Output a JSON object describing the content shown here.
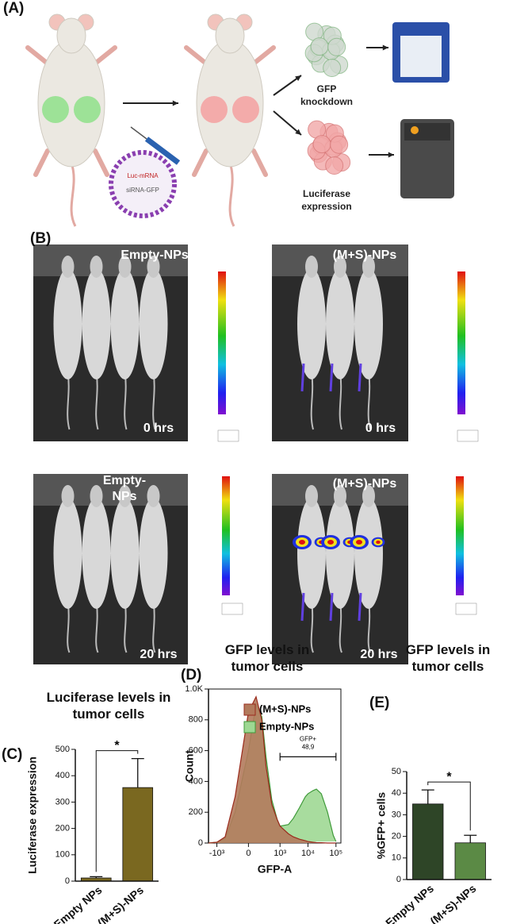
{
  "figure": {
    "panel_labels": [
      "(A)",
      "(B)",
      "(C)",
      "(D)",
      "(E)"
    ],
    "panel_a": {
      "particle_labels": [
        "Luc-mRNA",
        "siRNA-GFP"
      ],
      "outcomes": [
        "GFP knockdown",
        "Luciferase expression"
      ]
    },
    "panel_b": {
      "images": [
        {
          "group": "Empty-NPs",
          "time": "0 hrs"
        },
        {
          "group": "(M+S)-NPs",
          "time": "0 hrs"
        },
        {
          "group": "Empty-NPs",
          "time": "20 hrs"
        },
        {
          "group": "(M+S)-NPs",
          "time": "20 hrs"
        }
      ]
    }
  },
  "chart_data": [
    {
      "type": "bar",
      "title": "Luciferase levels in tumor cells",
      "ylabel": "Luciferase expression",
      "categories": [
        "Empty NPs",
        "(M+S)-NPs"
      ],
      "values": [
        12,
        355
      ],
      "errors": [
        5,
        110
      ],
      "colors": [
        "#7a6820",
        "#7a6820"
      ],
      "ylim": [
        0,
        500
      ],
      "yticks": [
        0,
        100,
        200,
        300,
        400,
        500
      ],
      "significance": "*"
    },
    {
      "type": "line",
      "title": "GFP levels in tumor cells",
      "xlabel": "GFP-A",
      "ylabel": "Count",
      "xscale": "biexponential",
      "x": [
        -2000,
        -1000,
        -500,
        -200,
        0,
        100,
        200,
        300,
        500,
        800,
        1000,
        2000,
        3000,
        5000,
        8000,
        10000,
        15000,
        20000,
        30000,
        50000,
        80000,
        100000
      ],
      "series": [
        {
          "name": "(M+S)-NPs",
          "color": "#b27a5c",
          "line_color": "#9a2a1c",
          "values": [
            0,
            5,
            40,
            300,
            850,
            950,
            800,
            500,
            250,
            150,
            110,
            60,
            40,
            25,
            15,
            10,
            5,
            3,
            2,
            0,
            0,
            0
          ]
        },
        {
          "name": "Empty-NPs",
          "color": "#9ed893",
          "line_color": "#3f9a3a",
          "values": [
            0,
            5,
            30,
            200,
            600,
            900,
            820,
            560,
            280,
            150,
            110,
            120,
            160,
            230,
            300,
            320,
            340,
            350,
            320,
            200,
            50,
            10
          ]
        }
      ],
      "xlim": [
        -2000,
        150000
      ],
      "xticks": [
        {
          "value": -1000,
          "label": "-10³"
        },
        0,
        {
          "value": 1000,
          "label": "10³"
        },
        {
          "value": 10000,
          "label": "10⁴"
        },
        {
          "value": 100000,
          "label": "10⁵"
        }
      ],
      "ylim": [
        0,
        1000
      ],
      "yticks": [
        0,
        200,
        400,
        600,
        800,
        {
          "value": 1000,
          "label": "1.0K"
        }
      ],
      "legend": "upper right",
      "gate": {
        "label": "GFP+",
        "value_label": "48,9",
        "range": [
          1000,
          100000
        ],
        "y": 560
      }
    },
    {
      "type": "bar",
      "title": "GFP levels in tumor cells",
      "ylabel": "%GFP+ cells",
      "categories": [
        "Empty NPs",
        "(M+S)-NPs"
      ],
      "values": [
        35,
        17
      ],
      "errors": [
        6.5,
        3.5
      ],
      "colors": [
        "#2e4527",
        "#5b8a45"
      ],
      "ylim": [
        0,
        50
      ],
      "yticks": [
        0,
        10,
        20,
        30,
        40,
        50
      ],
      "significance": "*"
    }
  ]
}
